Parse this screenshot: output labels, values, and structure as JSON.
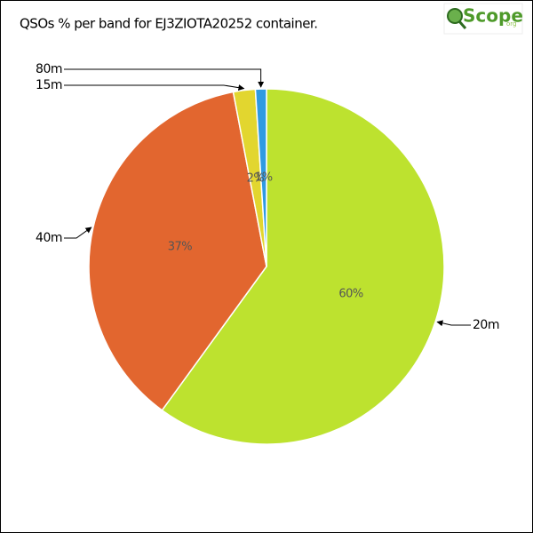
{
  "chart_data": {
    "type": "pie",
    "title": "QSOs % per band for EJ3ZIOTA20252 container.",
    "logo": {
      "name": "Scope",
      "suffix": "org"
    },
    "categories": [
      "20m",
      "40m",
      "15m",
      "80m"
    ],
    "values": [
      60,
      37,
      2,
      1
    ],
    "value_labels": [
      "60%",
      "37%",
      "2%",
      "1%"
    ],
    "colors": [
      "#bde22f",
      "#e2662f",
      "#e2d62f",
      "#2f9ae2"
    ],
    "start_angle": 0,
    "direction": "clockwise"
  }
}
